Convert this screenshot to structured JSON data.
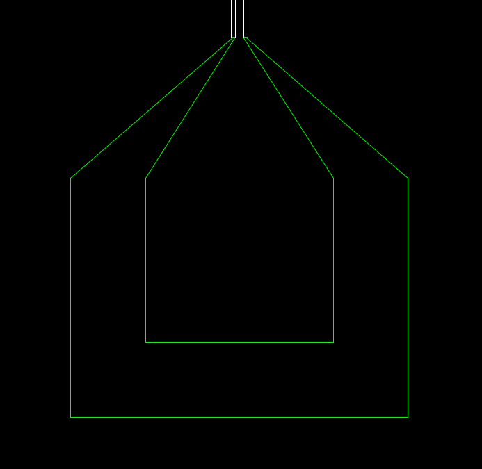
{
  "canvas": {
    "background_color": "#000000"
  },
  "layout_drawing": {
    "kind": "two-turn loop trace with feed pads",
    "trace_color": "#00ff00",
    "pad_color": "#ffffff",
    "pads": [
      {
        "name": "left-feed-pad"
      },
      {
        "name": "right-feed-pad"
      }
    ],
    "traces": [
      {
        "name": "outer-loop-trace"
      },
      {
        "name": "inner-loop-trace"
      }
    ]
  }
}
